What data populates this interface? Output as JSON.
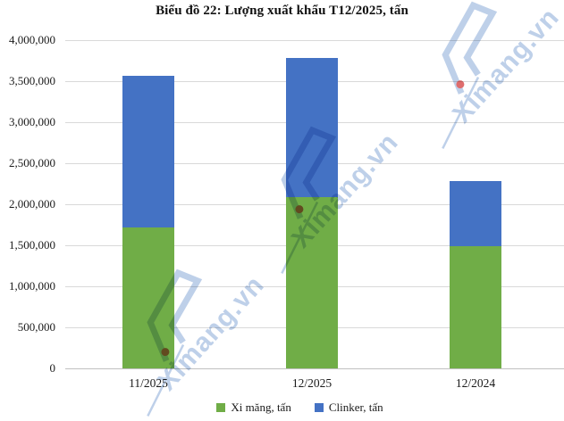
{
  "title": "Biểu đồ 22: Lượng xuất khẩu T12/2025, tấn",
  "watermark": {
    "text": "Ximang.vn"
  },
  "chart_data": {
    "type": "bar",
    "stacked": true,
    "title": "Biểu đồ 22: Lượng xuất khẩu T12/2025, tấn",
    "categories": [
      "11/2025",
      "12/2025",
      "12/2024"
    ],
    "series": [
      {
        "name": "Xi măng, tấn",
        "color": "#70AD47",
        "values": [
          1720000,
          2090000,
          1490000
        ]
      },
      {
        "name": "Clinker, tấn",
        "color": "#4472C4",
        "values": [
          1850000,
          1690000,
          790000
        ]
      }
    ],
    "totals": [
      3570000,
      3780000,
      2280000
    ],
    "xlabel": "",
    "ylabel": "",
    "ylim": [
      0,
      4000000
    ],
    "ytick_step": 500000,
    "yticks": [
      "4,000,000",
      "3,500,000",
      "3,000,000",
      "2,500,000",
      "2,000,000",
      "1,500,000",
      "1,000,000",
      "500,000",
      "0"
    ],
    "grid": true,
    "legend_position": "bottom"
  },
  "colors": {
    "cement_green": "#70AD47",
    "clinker_blue": "#4472C4",
    "gridline": "#d9d9d9",
    "watermark_blue": "#b9cce8",
    "watermark_dot_red": "#dd6060"
  }
}
